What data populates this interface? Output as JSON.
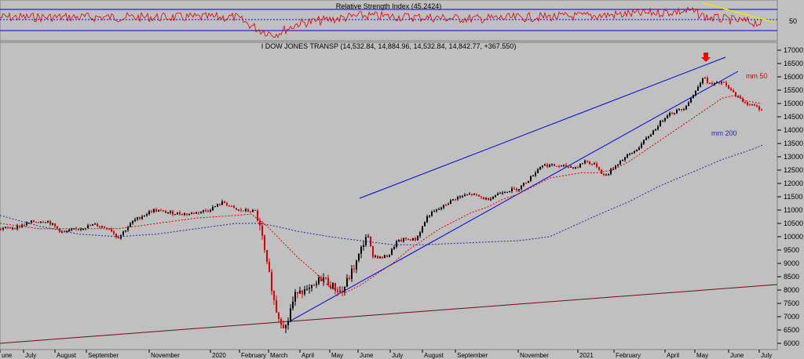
{
  "colors": {
    "background": "#c0c0c0",
    "rsi_line": "#e00000",
    "rsi_bands": "#0000d8",
    "candle_up": "#000000",
    "candle_down": "#e00000",
    "ma50": "#e00000",
    "ma200": "#2a2a9a",
    "channel": "#0000e0",
    "longterm_trendline": "#6a1010",
    "rsi_trendline": "#e8e800",
    "arrow": "#ff0000"
  },
  "rsi_panel": {
    "title": "Relative Strength Index (45.2424)",
    "axis_label": "50"
  },
  "price_panel": {
    "title": "I DOW JONES TRANSP (14,532.84, 14,884.96, 14,532.84, 14,842.77, +367.550)"
  },
  "chart_data": {
    "type": "candlestick",
    "yscale": "linear",
    "ylim": [
      6000,
      17100
    ],
    "y_ticks": [
      6000,
      6500,
      7000,
      7500,
      8000,
      8500,
      9000,
      9500,
      10000,
      10500,
      11000,
      11500,
      12000,
      12500,
      13000,
      13500,
      14000,
      14500,
      15000,
      15500,
      16000,
      16500,
      17000
    ],
    "x_tick_labels": [
      "une",
      "July",
      "August",
      "September",
      "November",
      "2020",
      "February",
      "March",
      "April",
      "May",
      "June",
      "July",
      "August",
      "September",
      "November",
      "2021",
      "February",
      "April",
      "May",
      "June",
      "July"
    ],
    "price_path": [
      [
        0,
        10300
      ],
      [
        20,
        10350
      ],
      [
        40,
        10550
      ],
      [
        60,
        10600
      ],
      [
        80,
        10150
      ],
      [
        100,
        10300
      ],
      [
        120,
        10450
      ],
      [
        140,
        10300
      ],
      [
        150,
        9950
      ],
      [
        170,
        10600
      ],
      [
        195,
        11000
      ],
      [
        215,
        10900
      ],
      [
        240,
        10850
      ],
      [
        265,
        11000
      ],
      [
        285,
        11300
      ],
      [
        300,
        11000
      ],
      [
        325,
        10950
      ],
      [
        333,
        10100
      ],
      [
        340,
        8900
      ],
      [
        345,
        8300
      ],
      [
        350,
        7400
      ],
      [
        355,
        7000
      ],
      [
        360,
        6750
      ],
      [
        365,
        6600
      ],
      [
        370,
        7300
      ],
      [
        380,
        8100
      ],
      [
        390,
        7900
      ],
      [
        400,
        8100
      ],
      [
        410,
        8500
      ],
      [
        425,
        8100
      ],
      [
        435,
        7900
      ],
      [
        445,
        8500
      ],
      [
        455,
        9100
      ],
      [
        462,
        9700
      ],
      [
        467,
        10100
      ],
      [
        475,
        9300
      ],
      [
        485,
        9200
      ],
      [
        495,
        9300
      ],
      [
        505,
        9800
      ],
      [
        515,
        9900
      ],
      [
        530,
        9900
      ],
      [
        545,
        10800
      ],
      [
        560,
        11050
      ],
      [
        580,
        11450
      ],
      [
        600,
        11600
      ],
      [
        620,
        11400
      ],
      [
        640,
        11700
      ],
      [
        660,
        11800
      ],
      [
        675,
        12200
      ],
      [
        690,
        12700
      ],
      [
        710,
        12650
      ],
      [
        735,
        12600
      ],
      [
        745,
        12850
      ],
      [
        760,
        12650
      ],
      [
        770,
        12250
      ],
      [
        790,
        12850
      ],
      [
        810,
        13250
      ],
      [
        830,
        13900
      ],
      [
        850,
        14600
      ],
      [
        870,
        14800
      ],
      [
        885,
        15400
      ],
      [
        895,
        16000
      ],
      [
        905,
        15700
      ],
      [
        920,
        15800
      ],
      [
        930,
        15500
      ],
      [
        945,
        15100
      ],
      [
        960,
        14900
      ],
      [
        972,
        14750
      ]
    ],
    "series": [
      {
        "name": "mm 50",
        "values": [
          [
            0,
            10500
          ],
          [
            50,
            10300
          ],
          [
            100,
            10300
          ],
          [
            150,
            10300
          ],
          [
            200,
            10500
          ],
          [
            250,
            10700
          ],
          [
            300,
            10800
          ],
          [
            320,
            10850
          ],
          [
            340,
            10400
          ],
          [
            360,
            9800
          ],
          [
            380,
            9200
          ],
          [
            400,
            8700
          ],
          [
            420,
            8100
          ],
          [
            440,
            7900
          ],
          [
            460,
            8200
          ],
          [
            480,
            8600
          ],
          [
            500,
            9000
          ],
          [
            520,
            9500
          ],
          [
            540,
            9900
          ],
          [
            560,
            10300
          ],
          [
            580,
            10600
          ],
          [
            600,
            10900
          ],
          [
            620,
            11100
          ],
          [
            640,
            11400
          ],
          [
            660,
            11600
          ],
          [
            680,
            11900
          ],
          [
            700,
            12200
          ],
          [
            720,
            12300
          ],
          [
            740,
            12400
          ],
          [
            760,
            12400
          ],
          [
            780,
            12500
          ],
          [
            800,
            12800
          ],
          [
            820,
            13200
          ],
          [
            840,
            13600
          ],
          [
            860,
            14000
          ],
          [
            880,
            14400
          ],
          [
            900,
            14800
          ],
          [
            920,
            15200
          ],
          [
            935,
            15300
          ],
          [
            950,
            15100
          ],
          [
            970,
            15000
          ]
        ]
      },
      {
        "name": "mm 200",
        "values": [
          [
            0,
            10800
          ],
          [
            50,
            10400
          ],
          [
            100,
            10100
          ],
          [
            150,
            10000
          ],
          [
            200,
            10100
          ],
          [
            250,
            10300
          ],
          [
            300,
            10500
          ],
          [
            330,
            10500
          ],
          [
            350,
            10400
          ],
          [
            380,
            10200
          ],
          [
            420,
            10000
          ],
          [
            460,
            9850
          ],
          [
            500,
            9700
          ],
          [
            540,
            9700
          ],
          [
            580,
            9750
          ],
          [
            620,
            9800
          ],
          [
            660,
            9850
          ],
          [
            700,
            10000
          ],
          [
            730,
            10400
          ],
          [
            760,
            10800
          ],
          [
            800,
            11300
          ],
          [
            840,
            11900
          ],
          [
            880,
            12400
          ],
          [
            920,
            12900
          ],
          [
            960,
            13300
          ],
          [
            972,
            13450
          ]
        ]
      }
    ],
    "annotations": [
      "mm 50",
      "mm 200"
    ]
  }
}
